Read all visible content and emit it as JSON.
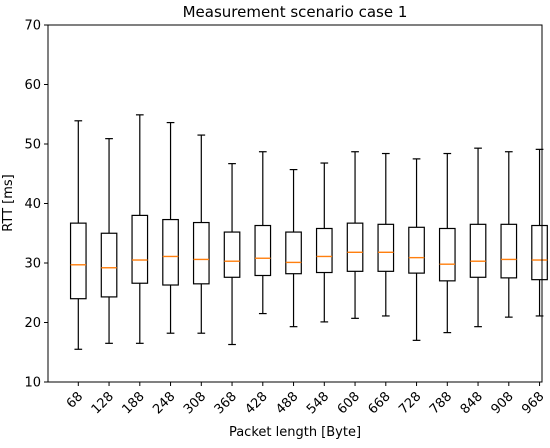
{
  "chart_data": {
    "type": "box",
    "title": "Measurement scenario case 1",
    "xlabel": "Packet length [Byte]",
    "ylabel": "RTT [ms]",
    "ylim": [
      10,
      70
    ],
    "yticks": [
      10,
      20,
      30,
      40,
      50,
      60,
      70
    ],
    "grid": false,
    "colors": {
      "box": "#000000",
      "median": "#ff7f0e"
    },
    "categories": [
      "68",
      "128",
      "188",
      "248",
      "308",
      "368",
      "428",
      "488",
      "548",
      "608",
      "668",
      "728",
      "788",
      "848",
      "908",
      "968"
    ],
    "boxes": [
      {
        "whislo": 15.5,
        "q1": 24.0,
        "med": 29.7,
        "q3": 36.7,
        "whishi": 53.9
      },
      {
        "whislo": 16.5,
        "q1": 24.3,
        "med": 29.2,
        "q3": 35.0,
        "whishi": 50.9
      },
      {
        "whislo": 16.5,
        "q1": 26.6,
        "med": 30.5,
        "q3": 38.0,
        "whishi": 54.9
      },
      {
        "whislo": 18.2,
        "q1": 26.3,
        "med": 31.1,
        "q3": 37.3,
        "whishi": 53.6
      },
      {
        "whislo": 18.2,
        "q1": 26.5,
        "med": 30.6,
        "q3": 36.8,
        "whishi": 51.5
      },
      {
        "whislo": 16.3,
        "q1": 27.6,
        "med": 30.3,
        "q3": 35.2,
        "whishi": 46.7
      },
      {
        "whislo": 21.5,
        "q1": 27.9,
        "med": 30.8,
        "q3": 36.3,
        "whishi": 48.7
      },
      {
        "whislo": 19.3,
        "q1": 28.2,
        "med": 30.1,
        "q3": 35.2,
        "whishi": 45.7
      },
      {
        "whislo": 20.1,
        "q1": 28.4,
        "med": 31.1,
        "q3": 35.8,
        "whishi": 46.8
      },
      {
        "whislo": 20.7,
        "q1": 28.6,
        "med": 31.8,
        "q3": 36.7,
        "whishi": 48.7
      },
      {
        "whislo": 21.1,
        "q1": 28.6,
        "med": 31.8,
        "q3": 36.5,
        "whishi": 48.4
      },
      {
        "whislo": 17.0,
        "q1": 28.3,
        "med": 30.9,
        "q3": 36.0,
        "whishi": 47.5
      },
      {
        "whislo": 18.3,
        "q1": 27.0,
        "med": 29.8,
        "q3": 35.8,
        "whishi": 48.4
      },
      {
        "whislo": 19.3,
        "q1": 27.6,
        "med": 30.3,
        "q3": 36.5,
        "whishi": 49.3
      },
      {
        "whislo": 20.9,
        "q1": 27.5,
        "med": 30.6,
        "q3": 36.5,
        "whishi": 48.7
      },
      {
        "whislo": 21.1,
        "q1": 27.2,
        "med": 30.5,
        "q3": 36.3,
        "whishi": 49.1
      }
    ]
  }
}
